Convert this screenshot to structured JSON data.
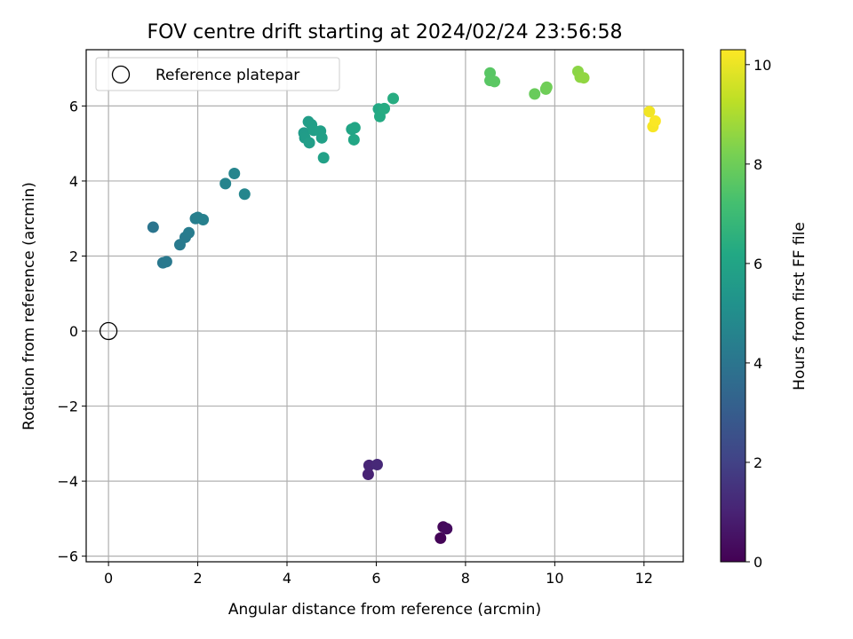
{
  "chart_data": {
    "type": "scatter",
    "title": "FOV centre drift starting at 2024/02/24 23:56:58",
    "xlabel": "Angular distance from reference (arcmin)",
    "ylabel": "Rotation from reference (arcmin)",
    "xlim": [
      -0.5,
      12.88
    ],
    "ylim": [
      -6.15,
      7.5
    ],
    "xticks": [
      0,
      2,
      4,
      6,
      8,
      10,
      12
    ],
    "yticks": [
      -6,
      -4,
      -2,
      0,
      2,
      4,
      6
    ],
    "grid": true,
    "legend": {
      "position": "top-left",
      "entries": [
        "Reference platepar"
      ]
    },
    "reference_point": {
      "x": 0,
      "y": 0,
      "marker": "open-circle"
    },
    "colorbar": {
      "label": "Hours from first FF file",
      "colormap": "viridis",
      "range": [
        0,
        10.3
      ],
      "ticks": [
        0,
        2,
        4,
        6,
        8,
        10
      ]
    },
    "points": [
      {
        "x": 7.44,
        "y": -5.52,
        "hours": 0.1
      },
      {
        "x": 7.5,
        "y": -5.22,
        "hours": 0.2
      },
      {
        "x": 7.58,
        "y": -5.27,
        "hours": 0.3
      },
      {
        "x": 5.82,
        "y": -3.82,
        "hours": 1.0
      },
      {
        "x": 5.84,
        "y": -3.58,
        "hours": 1.1
      },
      {
        "x": 6.02,
        "y": -3.56,
        "hours": 1.2
      },
      {
        "x": 1.0,
        "y": 2.77,
        "hours": 4.0
      },
      {
        "x": 1.22,
        "y": 1.82,
        "hours": 4.1
      },
      {
        "x": 1.3,
        "y": 1.85,
        "hours": 4.15
      },
      {
        "x": 1.6,
        "y": 2.3,
        "hours": 4.2
      },
      {
        "x": 1.72,
        "y": 2.5,
        "hours": 4.25
      },
      {
        "x": 1.8,
        "y": 2.62,
        "hours": 4.3
      },
      {
        "x": 1.95,
        "y": 3.0,
        "hours": 4.35
      },
      {
        "x": 2.0,
        "y": 3.03,
        "hours": 4.4
      },
      {
        "x": 2.12,
        "y": 2.97,
        "hours": 4.45
      },
      {
        "x": 2.62,
        "y": 3.93,
        "hours": 4.6
      },
      {
        "x": 2.82,
        "y": 4.2,
        "hours": 4.65
      },
      {
        "x": 3.05,
        "y": 3.65,
        "hours": 4.7
      },
      {
        "x": 4.38,
        "y": 5.28,
        "hours": 5.6
      },
      {
        "x": 4.4,
        "y": 5.15,
        "hours": 5.65
      },
      {
        "x": 4.48,
        "y": 5.58,
        "hours": 5.7
      },
      {
        "x": 4.5,
        "y": 5.02,
        "hours": 5.72
      },
      {
        "x": 4.55,
        "y": 5.5,
        "hours": 5.75
      },
      {
        "x": 4.6,
        "y": 5.35,
        "hours": 5.78
      },
      {
        "x": 4.75,
        "y": 5.33,
        "hours": 5.8
      },
      {
        "x": 4.78,
        "y": 5.15,
        "hours": 5.82
      },
      {
        "x": 4.82,
        "y": 4.62,
        "hours": 5.85
      },
      {
        "x": 5.45,
        "y": 5.38,
        "hours": 6.0
      },
      {
        "x": 5.52,
        "y": 5.42,
        "hours": 6.05
      },
      {
        "x": 5.5,
        "y": 5.1,
        "hours": 6.1
      },
      {
        "x": 6.05,
        "y": 5.92,
        "hours": 6.2
      },
      {
        "x": 6.08,
        "y": 5.72,
        "hours": 6.25
      },
      {
        "x": 6.18,
        "y": 5.93,
        "hours": 6.3
      },
      {
        "x": 6.38,
        "y": 6.2,
        "hours": 6.35
      },
      {
        "x": 8.55,
        "y": 6.88,
        "hours": 7.6
      },
      {
        "x": 8.55,
        "y": 6.68,
        "hours": 7.62
      },
      {
        "x": 8.65,
        "y": 6.65,
        "hours": 7.65
      },
      {
        "x": 9.55,
        "y": 6.32,
        "hours": 7.9
      },
      {
        "x": 9.8,
        "y": 6.45,
        "hours": 8.0
      },
      {
        "x": 9.82,
        "y": 6.5,
        "hours": 8.05
      },
      {
        "x": 10.52,
        "y": 6.92,
        "hours": 8.5
      },
      {
        "x": 10.57,
        "y": 6.77,
        "hours": 8.55
      },
      {
        "x": 10.65,
        "y": 6.75,
        "hours": 8.6
      },
      {
        "x": 12.12,
        "y": 5.85,
        "hours": 10.1
      },
      {
        "x": 12.2,
        "y": 5.45,
        "hours": 10.2
      },
      {
        "x": 12.25,
        "y": 5.6,
        "hours": 10.25
      }
    ]
  }
}
